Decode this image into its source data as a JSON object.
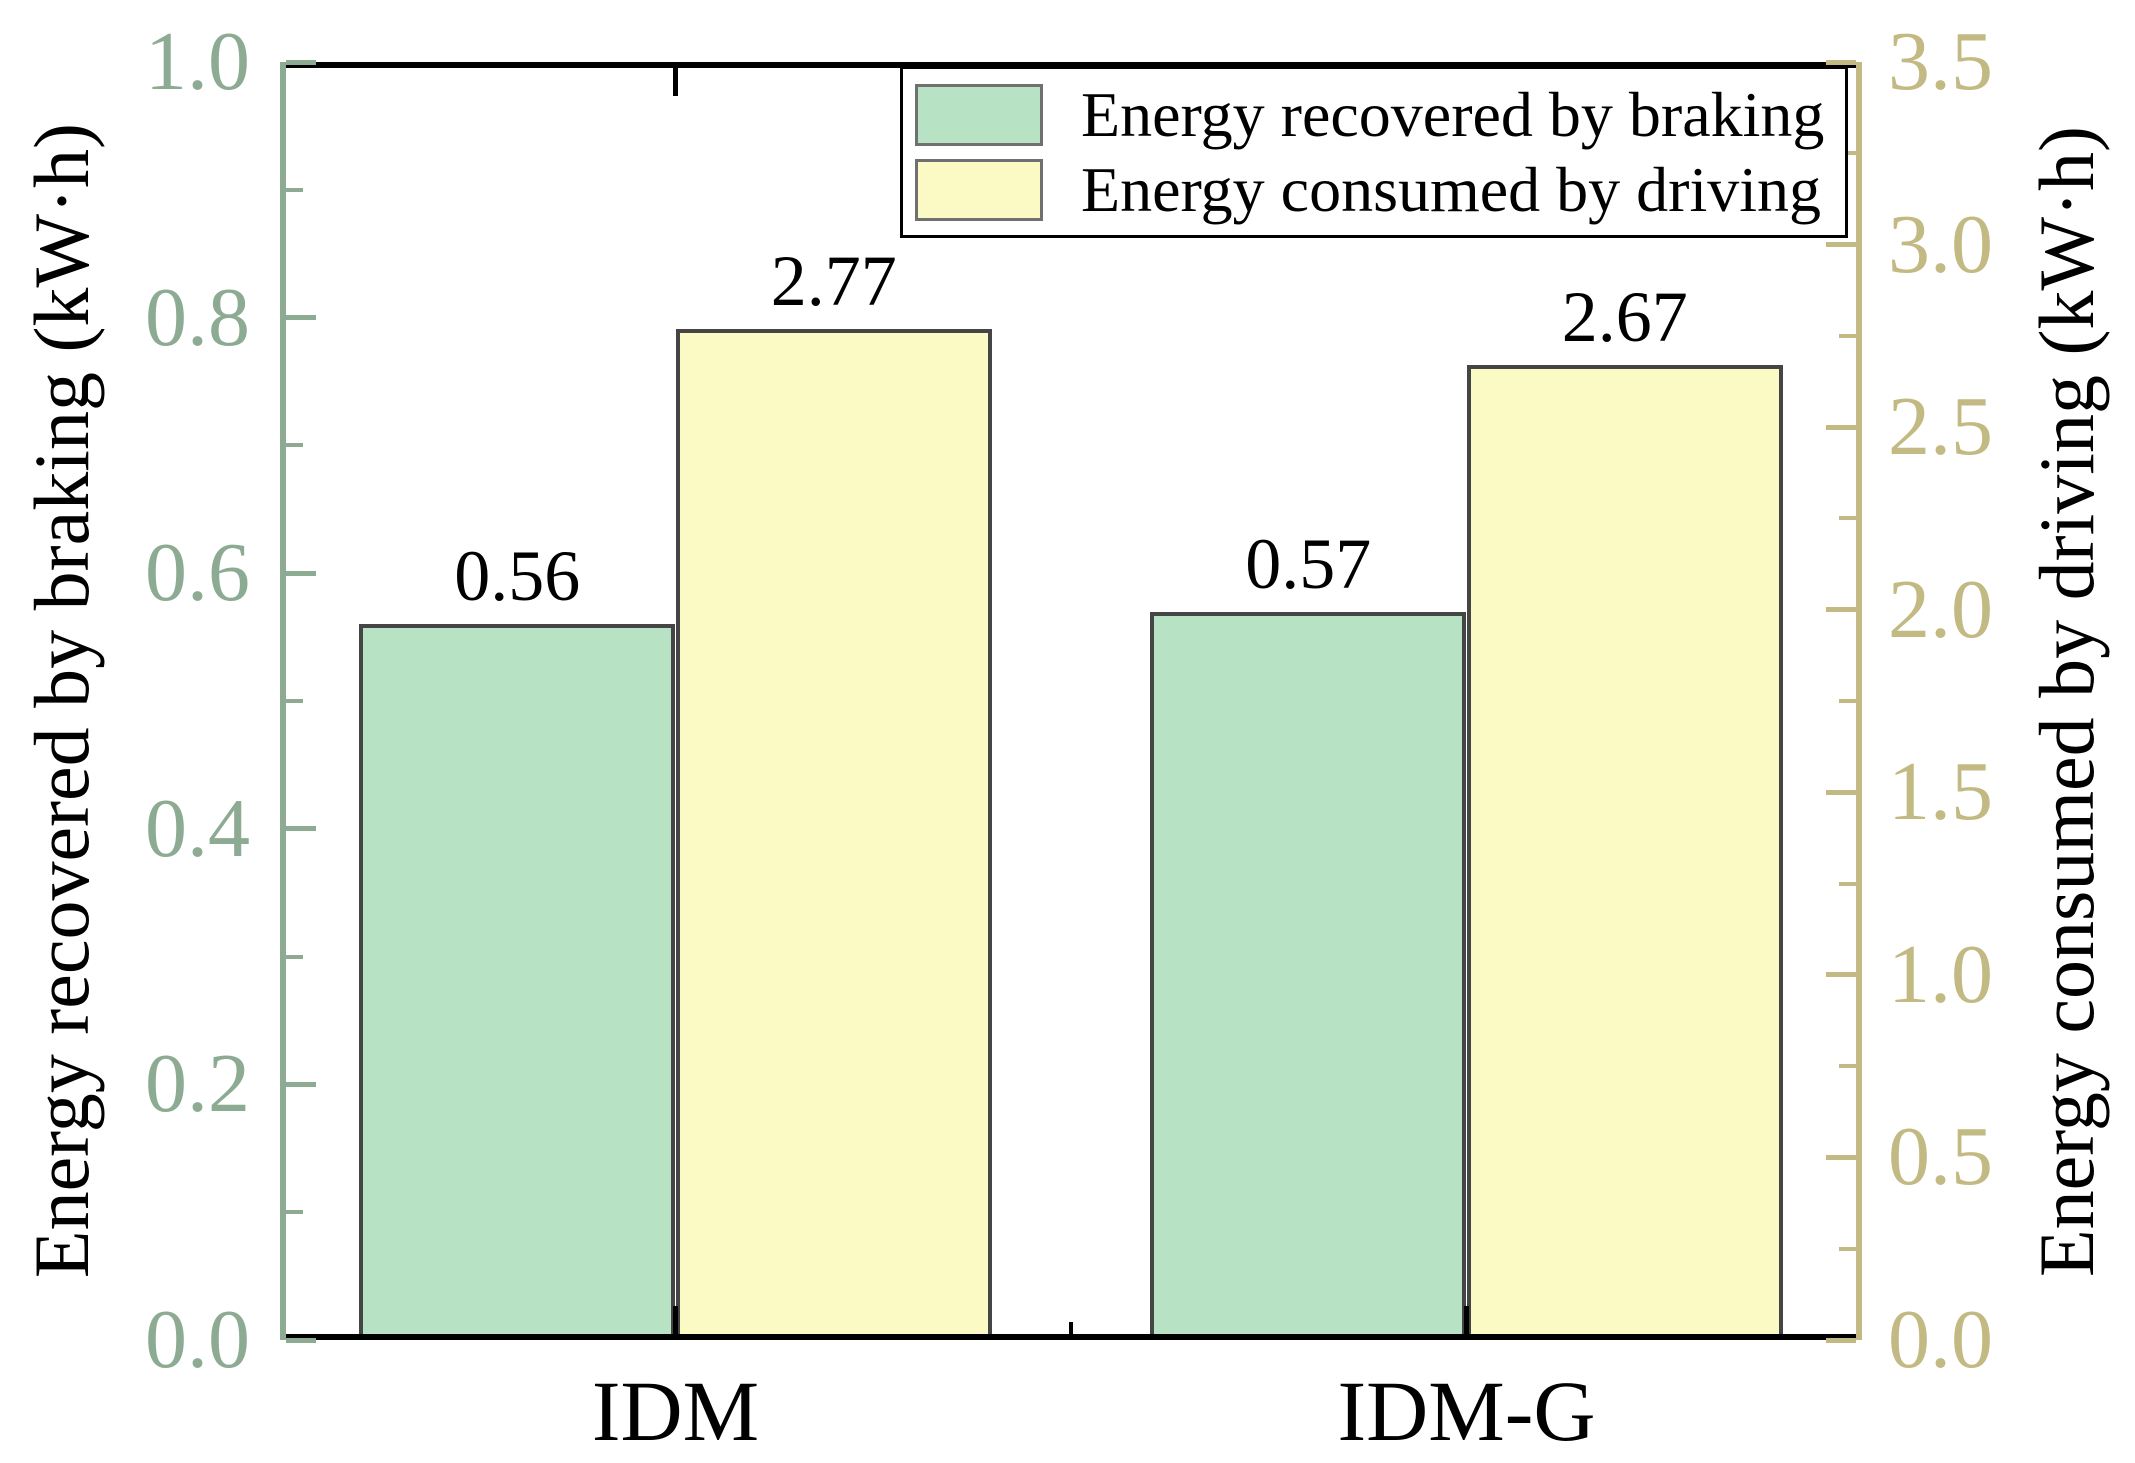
{
  "chart_data": {
    "type": "bar",
    "categories": [
      "IDM",
      "IDM-G"
    ],
    "series": [
      {
        "name": "Energy recovered by braking",
        "axis": "left",
        "values": [
          0.56,
          0.57
        ],
        "value_labels": [
          "0.56",
          "0.57"
        ],
        "color": "#b8e2c4"
      },
      {
        "name": "Energy consumed by driving",
        "axis": "right",
        "values": [
          2.77,
          2.67
        ],
        "value_labels": [
          "2.77",
          "2.67"
        ],
        "color": "#fbf9c4"
      }
    ],
    "left_axis": {
      "label": "Energy recovered by braking (kW·h)",
      "tick_labels": [
        "0.0",
        "0.2",
        "0.4",
        "0.6",
        "0.8",
        "1.0"
      ],
      "range": [
        0,
        1.0
      ],
      "minor_step": 0.1,
      "color": "#8dab92"
    },
    "right_axis": {
      "label": "Energy consumed by driving (kW·h)",
      "tick_labels": [
        "0.0",
        "0.5",
        "1.0",
        "1.5",
        "2.0",
        "2.5",
        "3.0",
        "3.5"
      ],
      "range": [
        0,
        3.5
      ],
      "minor_step": 0.25,
      "color": "#c2b983"
    },
    "legend": {
      "entries": [
        "Energy recovered by braking",
        "Energy consumed by driving"
      ],
      "position": "upper right"
    },
    "bar_edge_color": "#454545",
    "swatch_edge_color": "#707070",
    "frame_color": "#000000",
    "grid": false
  }
}
